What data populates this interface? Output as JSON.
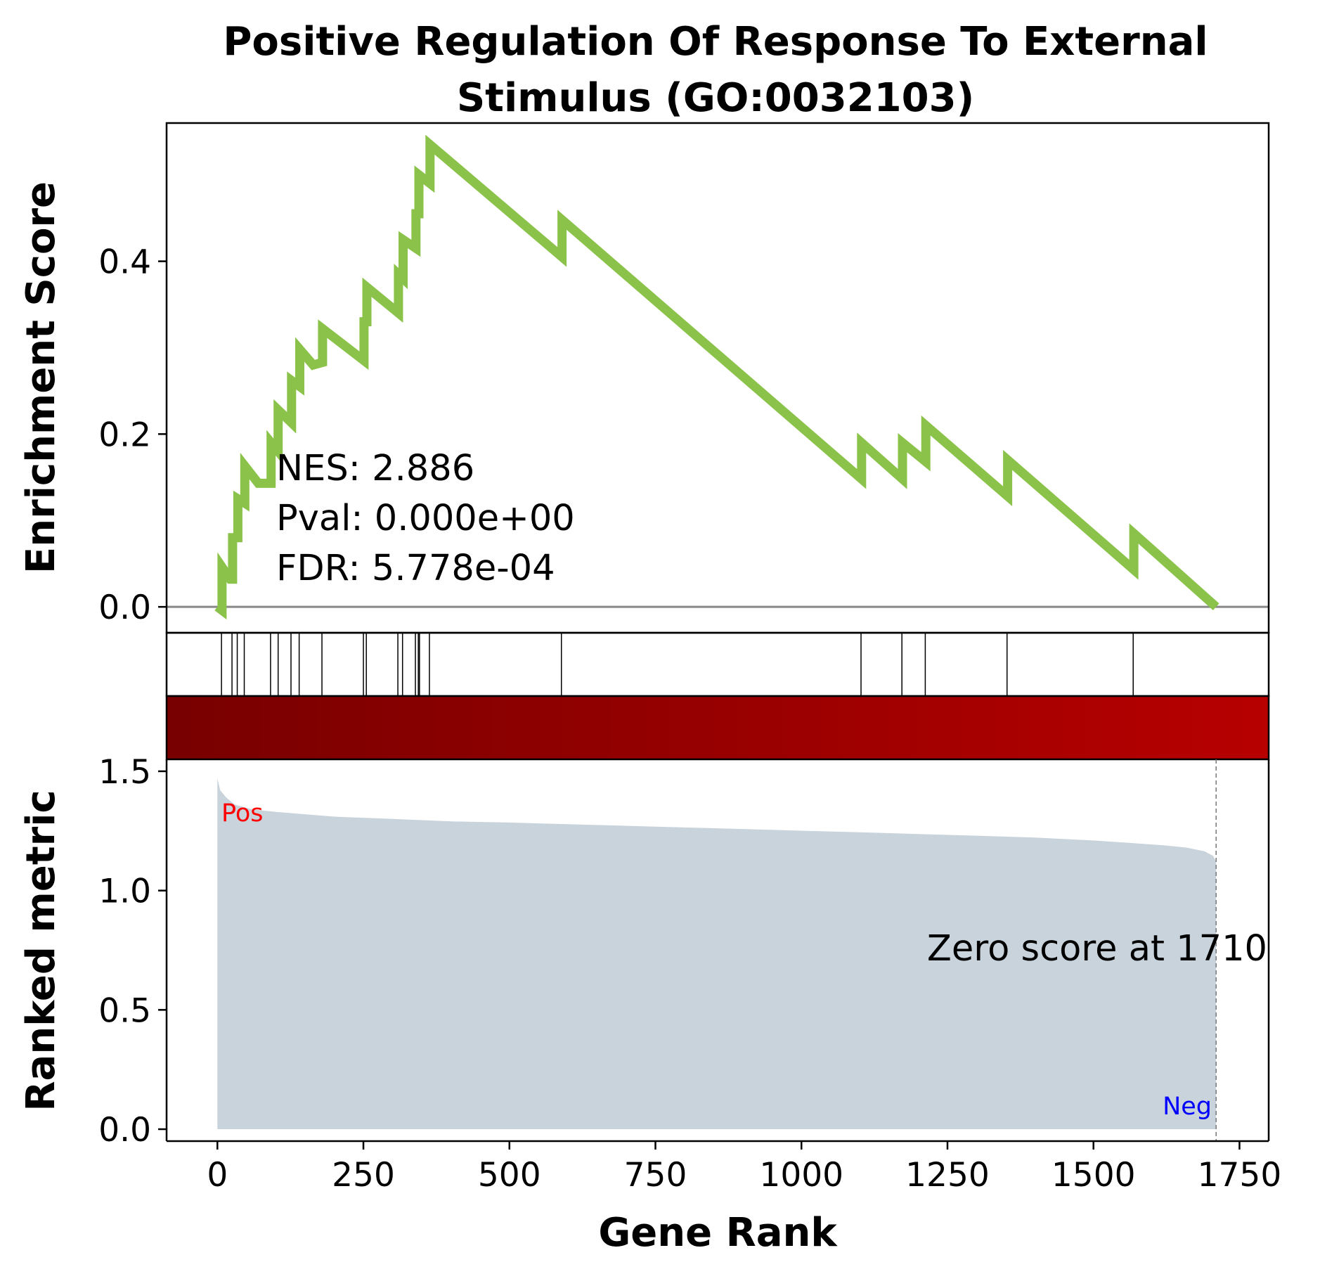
{
  "chart_data": {
    "type": "line",
    "title": "Positive Regulation Of Response To External Stimulus (GO:0032103)",
    "title_lines": [
      "Positive Regulation Of Response To External",
      "Stimulus (GO:0032103)"
    ],
    "xlabel": "Gene Rank",
    "xlim": [
      -87,
      1800
    ],
    "x_ticks": [
      0,
      250,
      500,
      750,
      1000,
      1250,
      1500,
      1750
    ],
    "enrichment_panel": {
      "ylabel": "Enrichment Score",
      "ylim": [
        -0.03,
        0.56
      ],
      "y_ticks": [
        0.0,
        0.2,
        0.4
      ],
      "y_tick_labels": [
        "0.0",
        "0.2",
        "0.4"
      ],
      "line_color": "#8bc34a",
      "zero_line_color": "#888888",
      "running_es": [
        [
          0,
          0.0
        ],
        [
          8,
          -0.004
        ],
        [
          8,
          0.046
        ],
        [
          22,
          0.032
        ],
        [
          26,
          0.032
        ],
        [
          26,
          0.08
        ],
        [
          35,
          0.08
        ],
        [
          35,
          0.125
        ],
        [
          47,
          0.12
        ],
        [
          47,
          0.163
        ],
        [
          70,
          0.143
        ],
        [
          92,
          0.143
        ],
        [
          92,
          0.19
        ],
        [
          104,
          0.18
        ],
        [
          104,
          0.228
        ],
        [
          127,
          0.213
        ],
        [
          127,
          0.262
        ],
        [
          141,
          0.255
        ],
        [
          141,
          0.298
        ],
        [
          164,
          0.28
        ],
        [
          180,
          0.283
        ],
        [
          180,
          0.322
        ],
        [
          251,
          0.285
        ],
        [
          251,
          0.33
        ],
        [
          256,
          0.33
        ],
        [
          256,
          0.37
        ],
        [
          310,
          0.34
        ],
        [
          310,
          0.385
        ],
        [
          318,
          0.38
        ],
        [
          318,
          0.425
        ],
        [
          340,
          0.415
        ],
        [
          340,
          0.455
        ],
        [
          345,
          0.455
        ],
        [
          345,
          0.5
        ],
        [
          364,
          0.49
        ],
        [
          364,
          0.535
        ],
        [
          590,
          0.405
        ],
        [
          590,
          0.448
        ],
        [
          1103,
          0.148
        ],
        [
          1103,
          0.19
        ],
        [
          1173,
          0.148
        ],
        [
          1173,
          0.19
        ],
        [
          1213,
          0.168
        ],
        [
          1213,
          0.21
        ],
        [
          1353,
          0.128
        ],
        [
          1353,
          0.17
        ],
        [
          1569,
          0.043
        ],
        [
          1569,
          0.085
        ],
        [
          1710,
          0.0
        ]
      ]
    },
    "hit_positions": [
      7,
      25,
      34,
      46,
      91,
      104,
      126,
      140,
      179,
      250,
      255,
      309,
      317,
      339,
      344,
      346,
      363,
      589,
      1102,
      1172,
      1212,
      1352,
      1568
    ],
    "ranked_metric_panel": {
      "ylabel": "Ranked metric",
      "ylim": [
        -0.05,
        1.55
      ],
      "y_ticks": [
        0.0,
        0.5,
        1.0,
        1.5
      ],
      "y_tick_labels": [
        "0.0",
        "0.5",
        "1.0",
        "1.5"
      ],
      "fill_color": "#c8d3dc",
      "metric_curve": [
        [
          0,
          1.47
        ],
        [
          5,
          1.42
        ],
        [
          15,
          1.39
        ],
        [
          30,
          1.36
        ],
        [
          60,
          1.34
        ],
        [
          100,
          1.33
        ],
        [
          200,
          1.31
        ],
        [
          300,
          1.3
        ],
        [
          400,
          1.29
        ],
        [
          500,
          1.285
        ],
        [
          600,
          1.278
        ],
        [
          750,
          1.268
        ],
        [
          900,
          1.258
        ],
        [
          1000,
          1.251
        ],
        [
          1100,
          1.244
        ],
        [
          1200,
          1.237
        ],
        [
          1300,
          1.23
        ],
        [
          1400,
          1.222
        ],
        [
          1500,
          1.21
        ],
        [
          1560,
          1.2
        ],
        [
          1620,
          1.19
        ],
        [
          1660,
          1.18
        ],
        [
          1690,
          1.165
        ],
        [
          1705,
          1.145
        ],
        [
          1710,
          1.12
        ]
      ],
      "zero_score_at": 1710,
      "zero_score_label": "Zero score at 1710",
      "pos_label": "Pos",
      "neg_label": "Neg",
      "pos_color": "#ff0000",
      "neg_color": "#0000ff"
    },
    "colorbar": {
      "start_color": "#780000",
      "end_color": "#b70000"
    },
    "stats": {
      "nes": "NES: 2.886",
      "pval": "Pval: 0.000e+00",
      "fdr": "FDR: 5.778e-04"
    }
  }
}
